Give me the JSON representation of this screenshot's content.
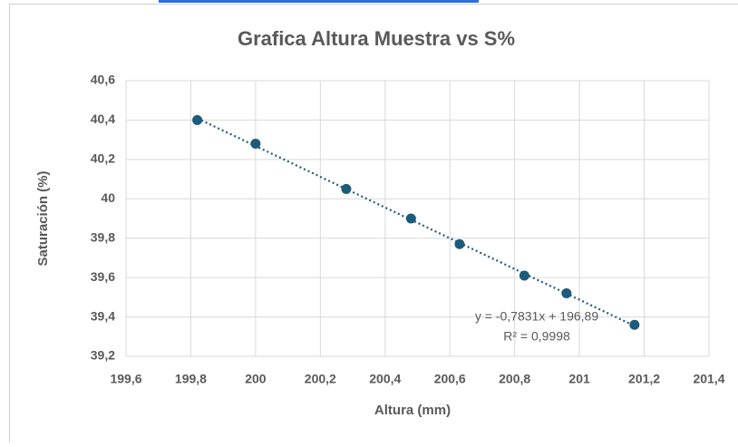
{
  "chart_data": {
    "type": "scatter",
    "title": "Grafica Altura Muestra vs S%",
    "x_label": "Altura (mm)",
    "y_label": "Saturación (%)",
    "annotations": [
      "y = -0,7831x + 196,89",
      "R² = 0,9998"
    ],
    "series": [
      {
        "name": "S%",
        "color": "#1d5b7b",
        "x": [
          199.82,
          200,
          200.28,
          200.48,
          200.63,
          200.83,
          200.96,
          201.17
        ],
        "values": [
          40.4,
          40.28,
          40.05,
          39.9,
          39.77,
          39.61,
          39.52,
          39.36
        ]
      }
    ],
    "xlim": [
      199.6,
      201.4
    ],
    "xticks": [
      {
        "value": 199.6,
        "label": "199,6"
      },
      {
        "value": 199.8,
        "label": "199,8"
      },
      200,
      {
        "value": 200.2,
        "label": "200,2"
      },
      {
        "value": 200.4,
        "label": "200,4"
      },
      {
        "value": 200.6,
        "label": "200,6"
      },
      {
        "value": 200.8,
        "label": "200,8"
      },
      201,
      {
        "value": 201.2,
        "label": "201,2"
      },
      {
        "value": 201.4,
        "label": "201,4"
      }
    ],
    "ylim": [
      39.2,
      40.6
    ],
    "yticks": [
      {
        "value": 39.2,
        "label": "39,2"
      },
      {
        "value": 39.4,
        "label": "39,4"
      },
      {
        "value": 39.6,
        "label": "39,6"
      },
      {
        "value": 39.8,
        "label": "39,8"
      },
      40,
      {
        "value": 40.2,
        "label": "40,2"
      },
      {
        "value": 40.4,
        "label": "40,4"
      },
      {
        "value": 40.6,
        "label": "40,6"
      }
    ],
    "grid": true
  }
}
